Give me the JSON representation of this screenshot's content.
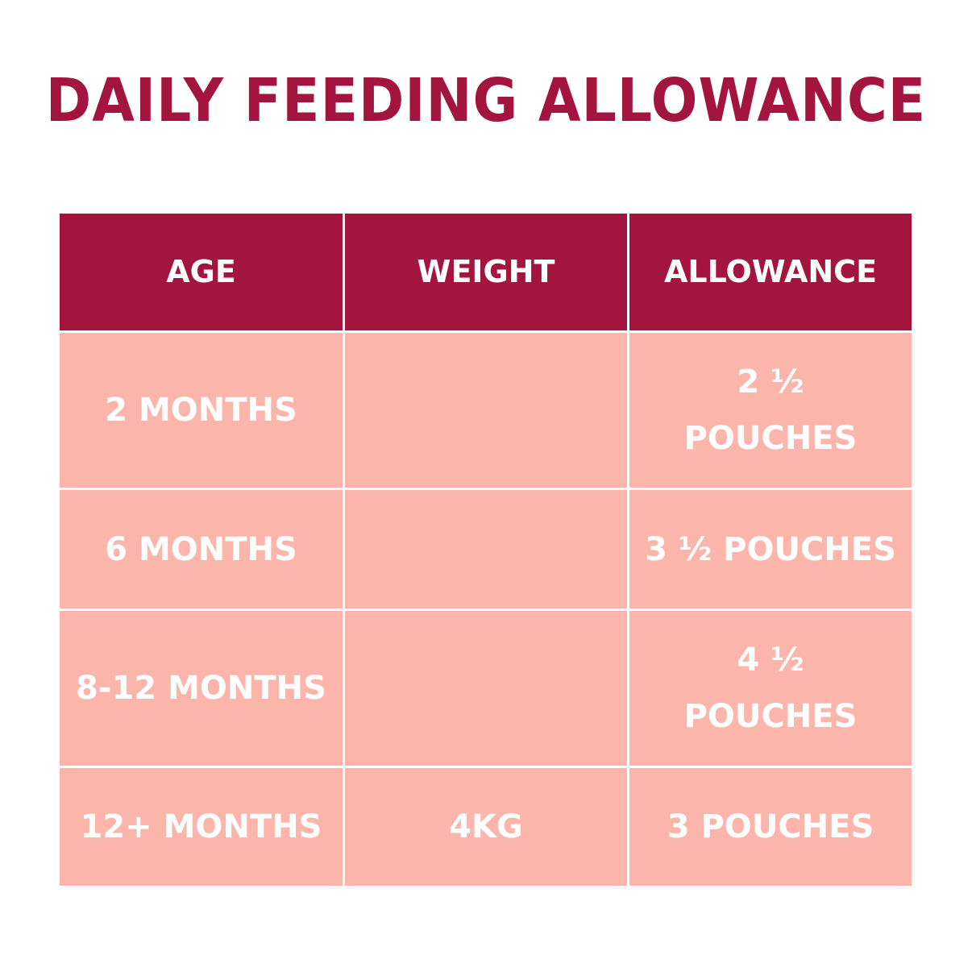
{
  "title": "DAILY FEEDING ALLOWANCE",
  "table": {
    "header": [
      "AGE",
      "WEIGHT",
      "ALLOWANCE"
    ],
    "rows": [
      {
        "age": "2 MONTHS",
        "allowance": "2 ½\nPOUCHES"
      },
      {
        "age": "6 MONTHS",
        "allowance": "3 ½ POUCHES"
      },
      {
        "age": "8-12 MONTHS",
        "allowance": "4 ½\nPOUCHES"
      },
      {
        "age": "12+ MONTHS",
        "weight": "4KG",
        "allowance": "3 POUCHES"
      }
    ]
  }
}
